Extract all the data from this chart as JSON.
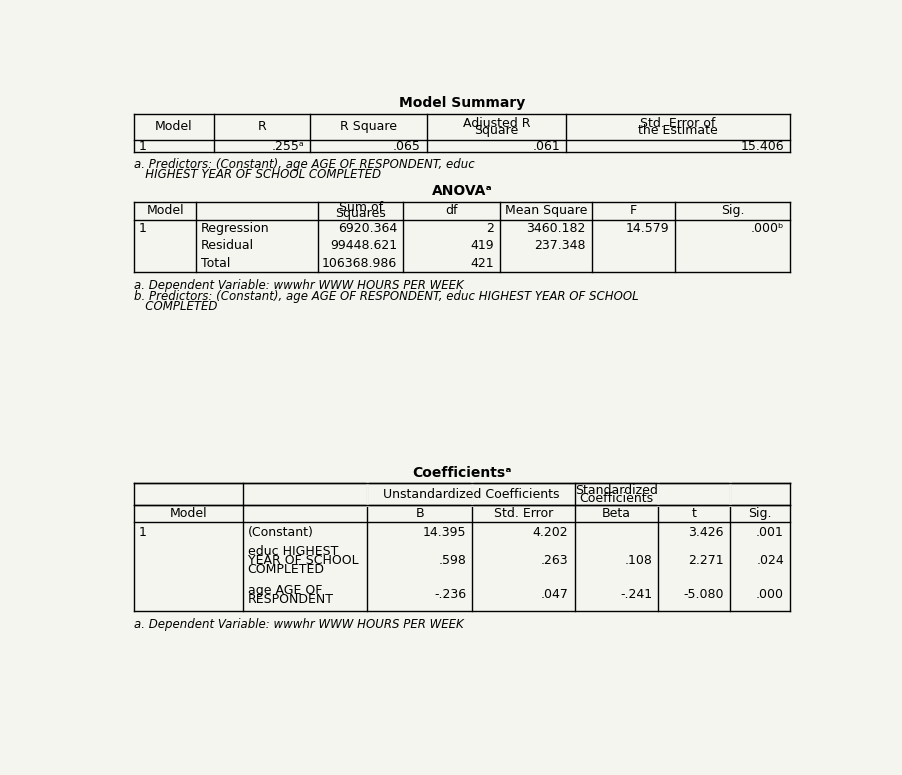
{
  "bg_color": "#f5f5f0",
  "text_color": "#000000",
  "table_line_color": "#000000",
  "font_family": "DejaVu Sans",
  "model_summary": {
    "title": "Model Summary",
    "headers": [
      "Model",
      "R",
      "R Square",
      "Adjusted R\nSquare",
      "Std. Error of\nthe Estimate"
    ],
    "rows": [
      [
        "1",
        ".255ᵃ",
        ".065",
        ".061",
        "15.406"
      ]
    ],
    "footnote_line1": "a. Predictors: (Constant), age AGE OF RESPONDENT, educ",
    "footnote_line2": "   HIGHEST YEAR OF SCHOOL COMPLETED"
  },
  "anova": {
    "title": "ANOVAᵃ",
    "headers": [
      "Model",
      "",
      "Sum of\nSquares",
      "df",
      "Mean Square",
      "F",
      "Sig."
    ],
    "rows": [
      [
        "1",
        "Regression",
        "6920.364",
        "2",
        "3460.182",
        "14.579",
        ".000ᵇ"
      ],
      [
        "",
        "Residual",
        "99448.621",
        "419",
        "237.348",
        "",
        ""
      ],
      [
        "",
        "Total",
        "106368.986",
        "421",
        "",
        "",
        ""
      ]
    ],
    "footnote_a": "a. Dependent Variable: wwwhr WWW HOURS PER WEEK",
    "footnote_b1": "b. Predictors: (Constant), age AGE OF RESPONDENT, educ HIGHEST YEAR OF SCHOOL",
    "footnote_b2": "   COMPLETED"
  },
  "coefficients": {
    "title": "Coefficientsᵃ",
    "span1_label": "Unstandardized Coefficients",
    "span2_label": "Standardized\nCoefficients",
    "header_row2": [
      "Model",
      "B",
      "Std. Error",
      "Beta",
      "t",
      "Sig."
    ],
    "rows": [
      [
        "1",
        "(Constant)",
        "14.395",
        "4.202",
        "",
        "3.426",
        ".001"
      ],
      [
        "",
        "educ HIGHEST\nYEAR OF SCHOOL\nCOMPLETED",
        ".598",
        ".263",
        ".108",
        "2.271",
        ".024"
      ],
      [
        "",
        "age AGE OF\nRESPONDENT",
        "-.236",
        ".047",
        "-.241",
        "-5.080",
        ".000"
      ]
    ],
    "footnote": "a. Dependent Variable: wwwhr WWW HOURS PER WEEK"
  }
}
